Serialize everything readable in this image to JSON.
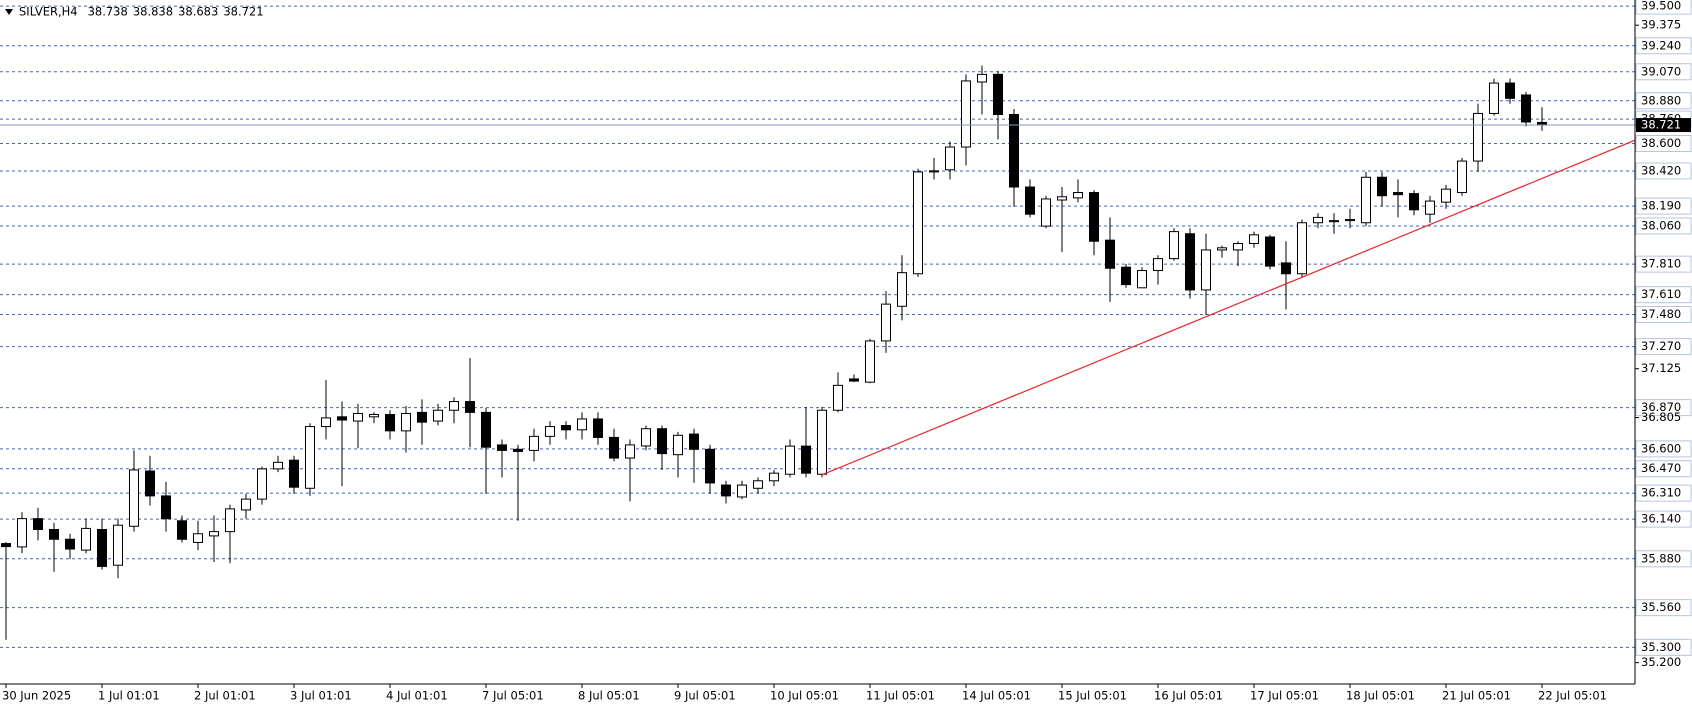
{
  "chart_data": {
    "type": "candlestick",
    "title": "SILVER,H4",
    "categories": [
      "30 Jun 2025",
      null,
      null,
      null,
      null,
      null,
      "1 Jul 01:01",
      null,
      null,
      null,
      null,
      null,
      "2 Jul 01:01",
      null,
      null,
      null,
      null,
      null,
      "3 Jul 01:01",
      null,
      null,
      null,
      null,
      null,
      "4 Jul 01:01",
      null,
      null,
      null,
      null,
      null,
      "7 Jul 05:01",
      null,
      null,
      null,
      null,
      null,
      "8 Jul 05:01",
      null,
      null,
      null,
      null,
      null,
      "9 Jul 05:01",
      null,
      null,
      null,
      null,
      null,
      "10 Jul 05:01",
      null,
      null,
      null,
      null,
      null,
      "11 Jul 05:01",
      null,
      null,
      null,
      null,
      null,
      "14 Jul 05:01",
      null,
      null,
      null,
      null,
      null,
      "15 Jul 05:01",
      null,
      null,
      null,
      null,
      null,
      "16 Jul 05:01",
      null,
      null,
      null,
      null,
      null,
      "17 Jul 05:01",
      null,
      null,
      null,
      null,
      null,
      "18 Jul 05:01",
      null,
      null,
      null,
      null,
      null,
      "21 Jul 05:01",
      null,
      null,
      null,
      null,
      null,
      "22 Jul 05:01"
    ],
    "open": [
      35.98,
      35.958,
      36.143,
      36.072,
      36.008,
      35.937,
      36.072,
      35.838,
      36.093,
      36.455,
      36.292,
      36.129,
      35.987,
      36.03,
      36.058,
      36.2,
      36.271,
      36.469,
      36.526,
      36.342,
      36.746,
      36.81,
      36.782,
      36.81,
      36.825,
      36.718,
      36.839,
      36.782,
      36.853,
      36.91,
      36.839,
      36.626,
      36.597,
      36.59,
      36.682,
      36.753,
      36.725,
      36.796,
      36.675,
      36.54,
      36.619,
      36.732,
      36.562,
      36.697,
      36.597,
      36.363,
      36.285,
      36.342,
      36.391,
      36.434,
      36.618,
      36.434,
      36.853,
      37.058,
      37.037,
      37.307,
      37.534,
      37.747,
      38.414,
      38.428,
      38.577,
      39.003,
      39.053,
      38.79,
      38.315,
      38.059,
      38.23,
      38.244,
      38.279,
      37.967,
      37.79,
      37.655,
      37.768,
      37.846,
      38.009,
      37.641,
      37.903,
      37.903,
      37.945,
      37.988,
      37.818,
      37.747,
      38.081,
      38.088,
      38.095,
      38.081,
      38.379,
      38.279,
      38.272,
      38.137,
      38.216,
      38.279,
      38.485,
      38.797,
      38.996,
      38.918,
      38.738
    ],
    "high": [
      35.99,
      36.186,
      36.214,
      36.115,
      36.044,
      36.143,
      36.143,
      36.143,
      36.59,
      36.555,
      36.384,
      36.164,
      36.129,
      36.164,
      36.235,
      36.306,
      36.484,
      36.555,
      36.555,
      36.768,
      37.051,
      36.91,
      36.895,
      36.839,
      36.853,
      36.881,
      36.924,
      36.895,
      36.938,
      37.194,
      36.868,
      36.661,
      36.626,
      36.732,
      36.782,
      36.782,
      36.839,
      36.839,
      36.732,
      36.661,
      36.753,
      36.753,
      36.711,
      36.732,
      36.626,
      36.391,
      36.391,
      36.413,
      36.462,
      36.661,
      36.874,
      36.874,
      37.101,
      37.087,
      37.321,
      37.633,
      37.868,
      38.435,
      38.506,
      38.613,
      39.053,
      39.11,
      39.074,
      38.826,
      38.364,
      38.258,
      38.315,
      38.364,
      38.294,
      38.116,
      37.811,
      37.79,
      37.868,
      38.045,
      38.045,
      38.009,
      37.931,
      37.96,
      38.023,
      38.002,
      37.96,
      38.102,
      38.144,
      38.144,
      38.173,
      38.414,
      38.414,
      38.364,
      38.294,
      38.258,
      38.329,
      38.506,
      38.861,
      39.025,
      39.025,
      38.939,
      38.838
    ],
    "low": [
      35.35,
      35.916,
      36.001,
      35.795,
      35.88,
      35.916,
      35.809,
      35.753,
      36.058,
      36.228,
      36.058,
      35.987,
      35.937,
      35.859,
      35.852,
      36.143,
      36.235,
      36.448,
      36.306,
      36.292,
      36.661,
      36.356,
      36.604,
      36.768,
      36.661,
      36.576,
      36.626,
      36.754,
      36.768,
      36.611,
      36.306,
      36.413,
      36.129,
      36.519,
      36.626,
      36.661,
      36.661,
      36.626,
      36.519,
      36.257,
      36.59,
      36.462,
      36.413,
      36.377,
      36.306,
      36.242,
      36.271,
      36.306,
      36.356,
      36.413,
      36.413,
      36.413,
      36.839,
      37.037,
      37.03,
      37.229,
      37.442,
      37.726,
      38.364,
      38.364,
      38.457,
      38.79,
      38.627,
      38.187,
      38.116,
      38.045,
      37.889,
      38.215,
      37.868,
      37.563,
      37.655,
      37.655,
      37.676,
      37.832,
      37.584,
      37.477,
      37.853,
      37.797,
      37.917,
      37.776,
      37.513,
      37.726,
      38.045,
      38.009,
      38.045,
      38.059,
      38.187,
      38.116,
      38.13,
      38.081,
      38.173,
      38.258,
      38.414,
      38.783,
      38.861,
      38.712,
      38.683
    ],
    "close": [
      35.96,
      36.143,
      36.072,
      36.008,
      35.944,
      36.079,
      35.83,
      36.1,
      36.462,
      36.292,
      36.143,
      36.008,
      36.044,
      36.058,
      36.207,
      36.271,
      36.469,
      36.512,
      36.349,
      36.746,
      36.803,
      36.789,
      36.832,
      36.825,
      36.718,
      36.832,
      36.775,
      36.853,
      36.91,
      36.839,
      36.611,
      36.59,
      36.583,
      36.682,
      36.746,
      36.725,
      36.796,
      36.675,
      36.54,
      36.626,
      36.732,
      36.569,
      36.689,
      36.597,
      36.377,
      36.292,
      36.363,
      36.391,
      36.441,
      36.618,
      36.441,
      36.853,
      37.016,
      37.044,
      37.307,
      37.548,
      37.754,
      38.414,
      38.421,
      38.577,
      39.01,
      39.053,
      38.79,
      38.315,
      38.137,
      38.237,
      38.251,
      38.279,
      37.96,
      37.783,
      37.676,
      37.768,
      37.846,
      38.023,
      37.641,
      37.903,
      37.917,
      37.945,
      38.002,
      37.797,
      37.747,
      38.081,
      38.116,
      38.095,
      38.102,
      38.379,
      38.258,
      38.265,
      38.166,
      38.223,
      38.301,
      38.485,
      38.797,
      38.996,
      38.896,
      38.741,
      38.721
    ],
    "up_color": "#ffffff",
    "down_color": "#000000",
    "ylim": [
      35.06,
      39.54
    ],
    "yticks": [
      39.375,
      37.125,
      36.805,
      {
        "value": 35.2,
        "label": "35.200"
      }
    ],
    "levels": [
      {
        "value": 39.5,
        "label": "39.500"
      },
      {
        "value": 39.24,
        "label": "39.240"
      },
      {
        "value": 39.07,
        "label": "39.070"
      },
      {
        "value": 38.88,
        "label": "38.880"
      },
      {
        "value": 38.76,
        "label": "38.760"
      },
      {
        "value": 38.6,
        "label": "38.600"
      },
      {
        "value": 38.42,
        "label": "38.420"
      },
      {
        "value": 38.19,
        "label": "38.190"
      },
      {
        "value": 38.06,
        "label": "38.060"
      },
      {
        "value": 37.81,
        "label": "37.810"
      },
      {
        "value": 37.61,
        "label": "37.610"
      },
      {
        "value": 37.48,
        "label": "37.480"
      },
      {
        "value": 37.27,
        "label": "37.270"
      },
      {
        "value": 36.87,
        "label": "36.870"
      },
      {
        "value": 36.6,
        "label": "36.600"
      },
      {
        "value": 36.47,
        "label": "36.470"
      },
      {
        "value": 36.31,
        "label": "36.310"
      },
      {
        "value": 36.14,
        "label": "36.140"
      },
      {
        "value": 35.88,
        "label": "35.880"
      },
      {
        "value": 35.56,
        "label": "35.560"
      },
      {
        "value": 35.3,
        "label": "35.300"
      }
    ],
    "level_color": "#3f63c8",
    "trendline": {
      "start": [
        51,
        36.43
      ],
      "end": [
        102,
        38.63
      ],
      "color": "#e8262b"
    }
  }
}
